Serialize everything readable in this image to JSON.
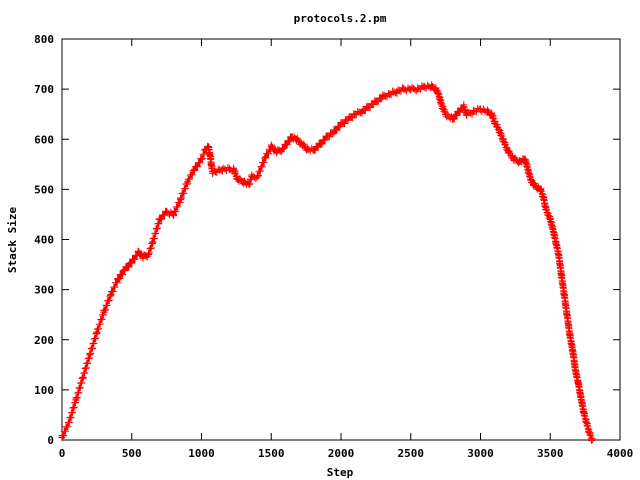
{
  "chart_data": {
    "type": "scatter",
    "title": "protocols.2.pm",
    "xlabel": "Step",
    "ylabel": "Stack Size",
    "xlim": [
      0,
      4000
    ],
    "ylim": [
      0,
      800
    ],
    "xticks": [
      "0",
      "500",
      "1000",
      "1500",
      "2000",
      "2500",
      "3000",
      "3500",
      "4000"
    ],
    "yticks": [
      "0",
      "100",
      "200",
      "300",
      "400",
      "500",
      "600",
      "700",
      "800"
    ],
    "grid": false,
    "legend": "none",
    "marker": "plus",
    "color": "#ff0000",
    "series": [
      {
        "x": [
          0,
          50,
          100,
          150,
          200,
          250,
          300,
          350,
          400,
          450,
          500,
          550,
          580,
          620,
          650,
          700,
          750,
          800,
          850,
          900,
          950,
          1000,
          1030,
          1050,
          1060,
          1070,
          1080,
          1100,
          1150,
          1200,
          1230,
          1260,
          1300,
          1340,
          1360,
          1400,
          1430,
          1460,
          1500,
          1540,
          1580,
          1620,
          1650,
          1680,
          1720,
          1760,
          1800,
          1850,
          1900,
          1950,
          2000,
          2050,
          2100,
          2150,
          2200,
          2250,
          2300,
          2350,
          2400,
          2450,
          2500,
          2550,
          2600,
          2650,
          2680,
          2700,
          2720,
          2750,
          2800,
          2830,
          2860,
          2880,
          2900,
          2950,
          3000,
          3050,
          3080,
          3100,
          3130,
          3160,
          3200,
          3240,
          3280,
          3320,
          3340,
          3360,
          3380,
          3400,
          3430,
          3450,
          3470,
          3500,
          3520,
          3540,
          3560,
          3580,
          3600,
          3620,
          3640,
          3660,
          3680,
          3700,
          3720,
          3740,
          3760,
          3780,
          3800
        ],
        "y": [
          5,
          35,
          80,
          125,
          170,
          215,
          255,
          290,
          320,
          340,
          355,
          375,
          365,
          370,
          395,
          440,
          455,
          450,
          480,
          515,
          540,
          560,
          580,
          585,
          570,
          550,
          535,
          535,
          540,
          540,
          540,
          520,
          515,
          510,
          525,
          525,
          545,
          565,
          585,
          575,
          580,
          595,
          605,
          600,
          590,
          580,
          578,
          590,
          605,
          615,
          630,
          640,
          650,
          655,
          665,
          675,
          685,
          690,
          695,
          700,
          700,
          700,
          705,
          705,
          700,
          690,
          670,
          650,
          640,
          650,
          660,
          665,
          650,
          655,
          660,
          655,
          650,
          635,
          620,
          600,
          575,
          560,
          555,
          560,
          540,
          520,
          510,
          505,
          500,
          485,
          460,
          440,
          420,
          395,
          370,
          330,
          290,
          250,
          210,
          180,
          140,
          115,
          85,
          55,
          35,
          15,
          0
        ]
      }
    ]
  }
}
